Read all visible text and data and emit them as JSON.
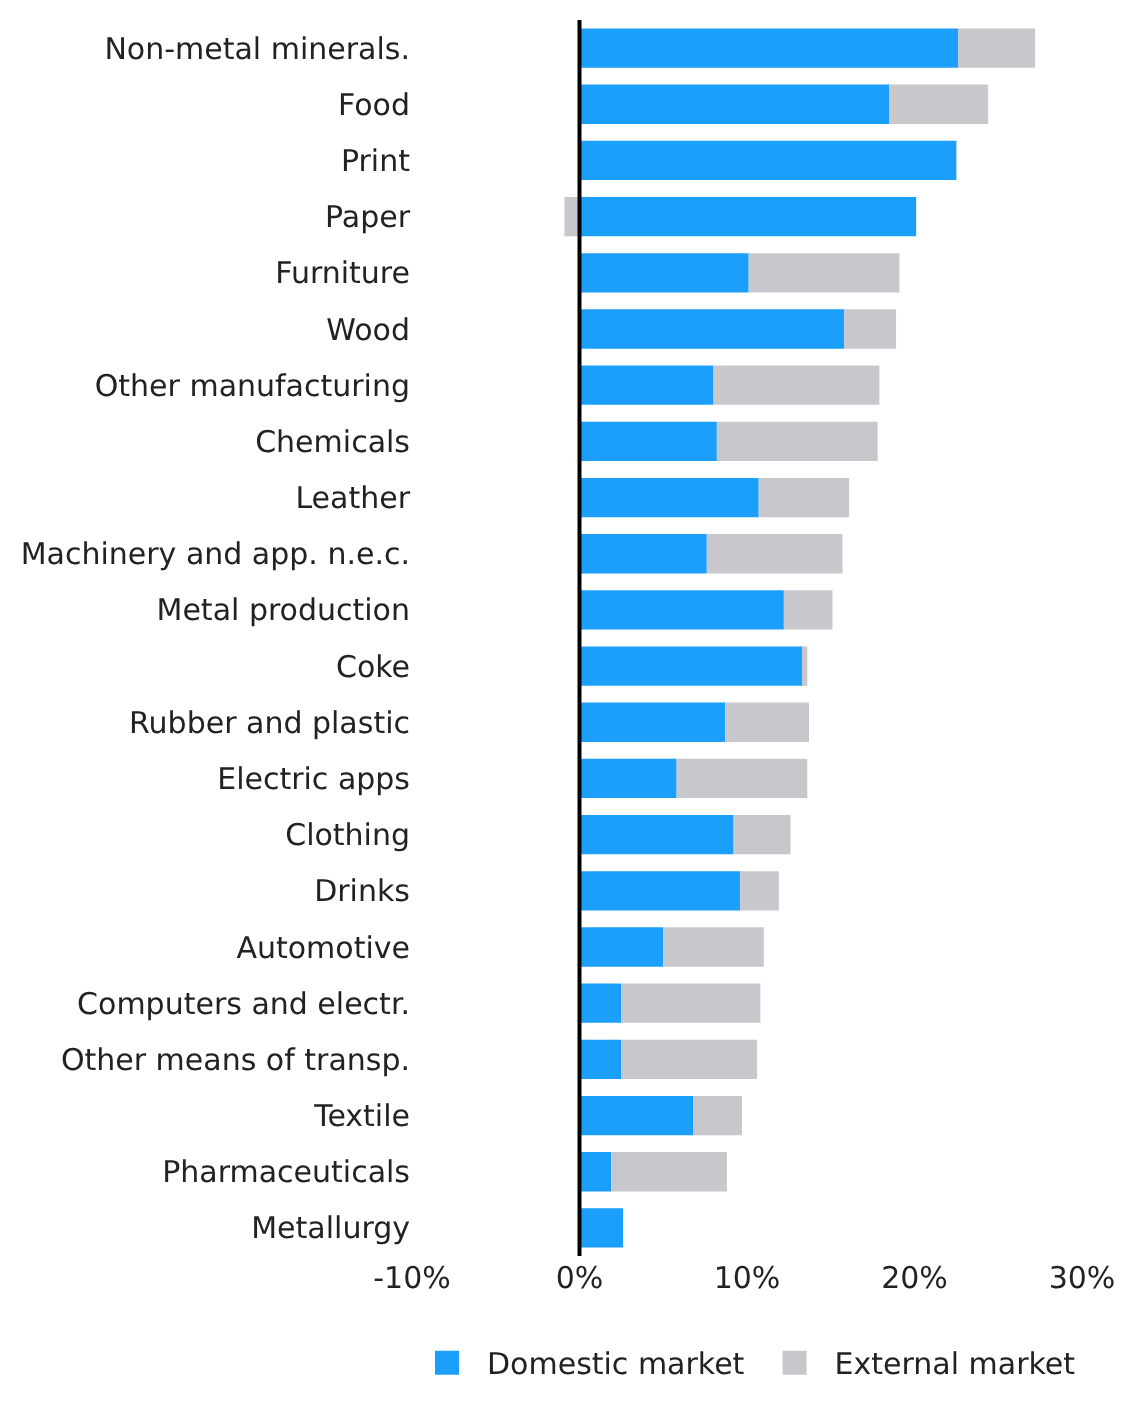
{
  "chart_data": {
    "type": "bar",
    "orientation": "horizontal",
    "stacked": true,
    "categories": [
      "Non-metal minerals.",
      "Food",
      "Print",
      "Paper",
      "Furniture",
      "Wood",
      "Other manufacturing",
      "Chemicals",
      "Leather",
      "Machinery and app. n.e.c.",
      "Metal production",
      "Coke",
      "Rubber and plastic",
      "Electric apps",
      "Clothing",
      "Drinks",
      "Automotive",
      "Computers and electr.",
      "Other means of transp.",
      "Textile",
      "Pharmaceuticals",
      "Metallurgy"
    ],
    "series": [
      {
        "name": "Domestic market",
        "color": "#1b9ffa",
        "values": [
          22.6,
          18.5,
          22.5,
          20.1,
          10.1,
          15.8,
          8.0,
          8.2,
          10.7,
          7.6,
          12.2,
          13.4,
          8.7,
          5.8,
          9.2,
          9.6,
          5.0,
          2.5,
          2.5,
          6.8,
          1.9,
          2.6
        ]
      },
      {
        "name": "External market",
        "color": "#c8c7cc",
        "values": [
          4.6,
          5.9,
          null,
          -0.9,
          9.0,
          3.1,
          9.9,
          9.6,
          5.4,
          8.1,
          2.9,
          0.2,
          5.0,
          7.8,
          3.4,
          2.3,
          6.0,
          8.3,
          8.1,
          2.9,
          6.9,
          null
        ]
      }
    ],
    "xlim": [
      -10,
      30
    ],
    "xticks": [
      {
        "value": -10,
        "label": "-10%"
      },
      {
        "value": 0,
        "label": "0%"
      },
      {
        "value": 10,
        "label": "10%"
      },
      {
        "value": 20,
        "label": "20%"
      },
      {
        "value": 30,
        "label": "30%"
      }
    ],
    "legend": "bottom"
  }
}
